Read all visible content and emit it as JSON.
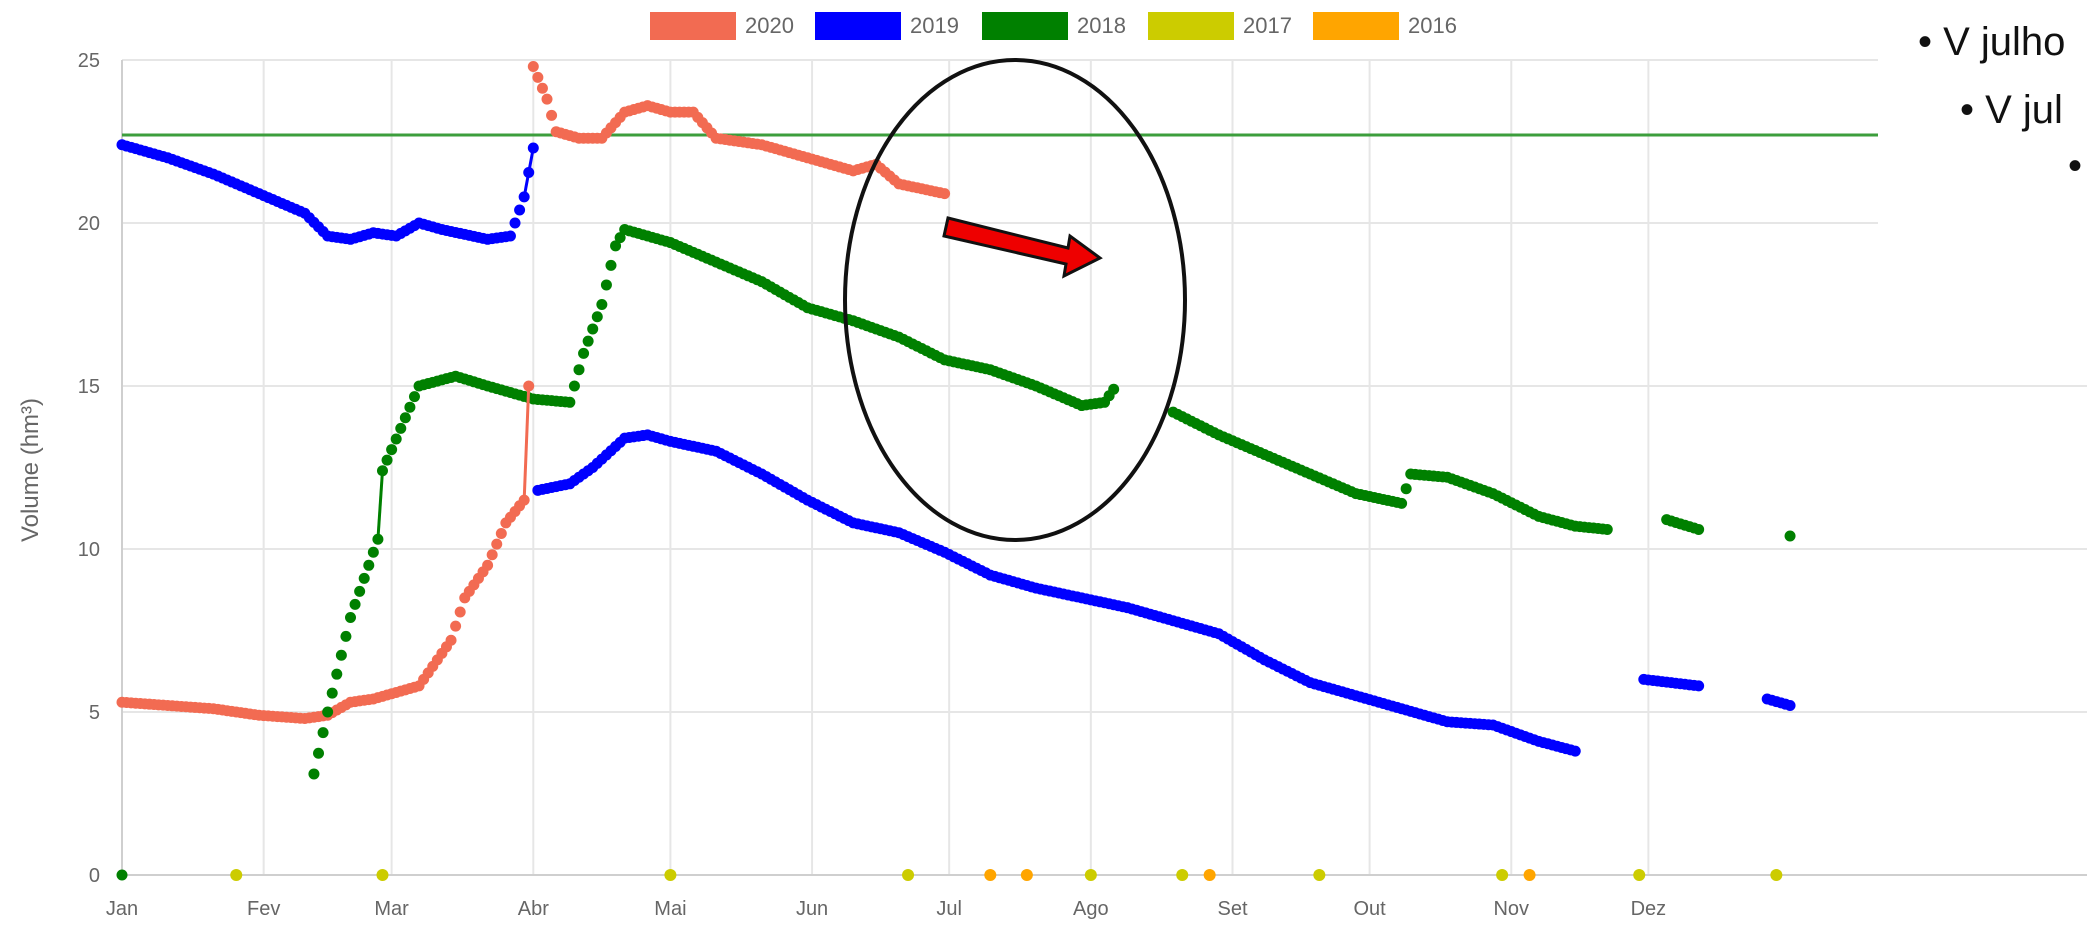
{
  "chart_data": {
    "type": "scatter",
    "ylabel": "Volume (hm³)",
    "ylim": [
      0,
      25
    ],
    "yticks": [
      "0",
      "5",
      "10",
      "15",
      "20",
      "25"
    ],
    "months": [
      "Jan",
      "Fev",
      "Mar",
      "Abr",
      "Mai",
      "Jun",
      "Jul",
      "Ago",
      "Set",
      "Out",
      "Nov",
      "Dez"
    ],
    "reference_line": 22.7,
    "legend_position": "top-center",
    "grid": true,
    "series": [
      {
        "name": "2020",
        "color": "#f26b52",
        "points": [
          [
            0,
            5.3
          ],
          [
            10,
            5.2
          ],
          [
            20,
            5.1
          ],
          [
            30,
            4.9
          ],
          [
            40,
            4.8
          ],
          [
            45,
            4.9
          ],
          [
            50,
            5.3
          ],
          [
            55,
            5.4
          ],
          [
            60,
            5.6
          ],
          [
            65,
            5.8
          ],
          [
            70,
            6.8
          ],
          [
            72,
            7.2
          ],
          [
            75,
            8.5
          ],
          [
            80,
            9.5
          ],
          [
            84,
            10.8
          ],
          [
            88,
            11.5
          ],
          [
            89,
            15.0
          ],
          [
            90,
            24.8
          ],
          [
            93,
            23.8
          ],
          [
            95,
            22.8
          ],
          [
            100,
            22.6
          ],
          [
            105,
            22.6
          ],
          [
            110,
            23.4
          ],
          [
            115,
            23.6
          ],
          [
            120,
            23.4
          ],
          [
            125,
            23.4
          ],
          [
            130,
            22.6
          ],
          [
            140,
            22.4
          ],
          [
            150,
            22.0
          ],
          [
            160,
            21.6
          ],
          [
            165,
            21.8
          ],
          [
            170,
            21.2
          ],
          [
            180,
            20.9
          ]
        ]
      },
      {
        "name": "2019",
        "color": "#0000ff",
        "points": [
          [
            0,
            22.4
          ],
          [
            10,
            22.0
          ],
          [
            20,
            21.5
          ],
          [
            30,
            20.9
          ],
          [
            40,
            20.3
          ],
          [
            45,
            19.6
          ],
          [
            50,
            19.5
          ],
          [
            55,
            19.7
          ],
          [
            60,
            19.6
          ],
          [
            65,
            20.0
          ],
          [
            70,
            19.8
          ],
          [
            80,
            19.5
          ],
          [
            85,
            19.6
          ],
          [
            88,
            20.8
          ],
          [
            90,
            22.3
          ],
          [
            91,
            11.8
          ],
          [
            98,
            12.0
          ],
          [
            103,
            12.5
          ],
          [
            110,
            13.4
          ],
          [
            115,
            13.5
          ],
          [
            120,
            13.3
          ],
          [
            130,
            13.0
          ],
          [
            140,
            12.3
          ],
          [
            150,
            11.5
          ],
          [
            160,
            10.8
          ],
          [
            170,
            10.5
          ],
          [
            180,
            9.9
          ],
          [
            190,
            9.2
          ],
          [
            200,
            8.8
          ],
          [
            210,
            8.5
          ],
          [
            220,
            8.2
          ],
          [
            230,
            7.8
          ],
          [
            240,
            7.4
          ],
          [
            250,
            6.6
          ],
          [
            260,
            5.9
          ],
          [
            270,
            5.5
          ],
          [
            280,
            5.1
          ],
          [
            290,
            4.7
          ],
          [
            300,
            4.6
          ],
          [
            310,
            4.1
          ],
          [
            318,
            3.8
          ],
          [
            333,
            6.0
          ],
          [
            345,
            5.8
          ],
          [
            360,
            5.4
          ],
          [
            365,
            5.2
          ]
        ]
      },
      {
        "name": "2018",
        "color": "#008000",
        "points": [
          [
            0,
            0.0
          ],
          [
            42,
            3.1
          ],
          [
            45,
            5.0
          ],
          [
            50,
            7.9
          ],
          [
            56,
            10.3
          ],
          [
            57,
            12.4
          ],
          [
            65,
            15.0
          ],
          [
            73,
            15.3
          ],
          [
            80,
            15.0
          ],
          [
            90,
            14.6
          ],
          [
            98,
            14.5
          ],
          [
            101,
            16.0
          ],
          [
            105,
            17.5
          ],
          [
            108,
            19.3
          ],
          [
            110,
            19.8
          ],
          [
            120,
            19.4
          ],
          [
            130,
            18.8
          ],
          [
            140,
            18.2
          ],
          [
            150,
            17.4
          ],
          [
            160,
            17.0
          ],
          [
            170,
            16.5
          ],
          [
            180,
            15.8
          ],
          [
            190,
            15.5
          ],
          [
            200,
            15.0
          ],
          [
            210,
            14.4
          ],
          [
            215,
            14.5
          ],
          [
            217,
            14.9
          ],
          [
            230,
            14.2
          ],
          [
            240,
            13.5
          ],
          [
            250,
            12.9
          ],
          [
            260,
            12.3
          ],
          [
            270,
            11.7
          ],
          [
            280,
            11.4
          ],
          [
            282,
            12.3
          ],
          [
            290,
            12.2
          ],
          [
            300,
            11.7
          ],
          [
            310,
            11.0
          ],
          [
            318,
            10.7
          ],
          [
            325,
            10.6
          ],
          [
            338,
            10.9
          ],
          [
            345,
            10.6
          ],
          [
            365,
            10.4
          ]
        ]
      },
      {
        "name": "2017",
        "color": "#cccc00",
        "points": [
          [
            25,
            0
          ],
          [
            57,
            0
          ],
          [
            120,
            0
          ],
          [
            172,
            0
          ],
          [
            212,
            0
          ],
          [
            232,
            0
          ],
          [
            262,
            0
          ],
          [
            302,
            0
          ],
          [
            332,
            0
          ],
          [
            362,
            0
          ]
        ]
      },
      {
        "name": "2016",
        "color": "#ffa500",
        "points": [
          [
            190,
            0
          ],
          [
            198,
            0
          ],
          [
            238,
            0
          ],
          [
            308,
            0
          ]
        ]
      }
    ]
  },
  "notes": [
    "• V julho",
    "• V jul",
    "•"
  ]
}
